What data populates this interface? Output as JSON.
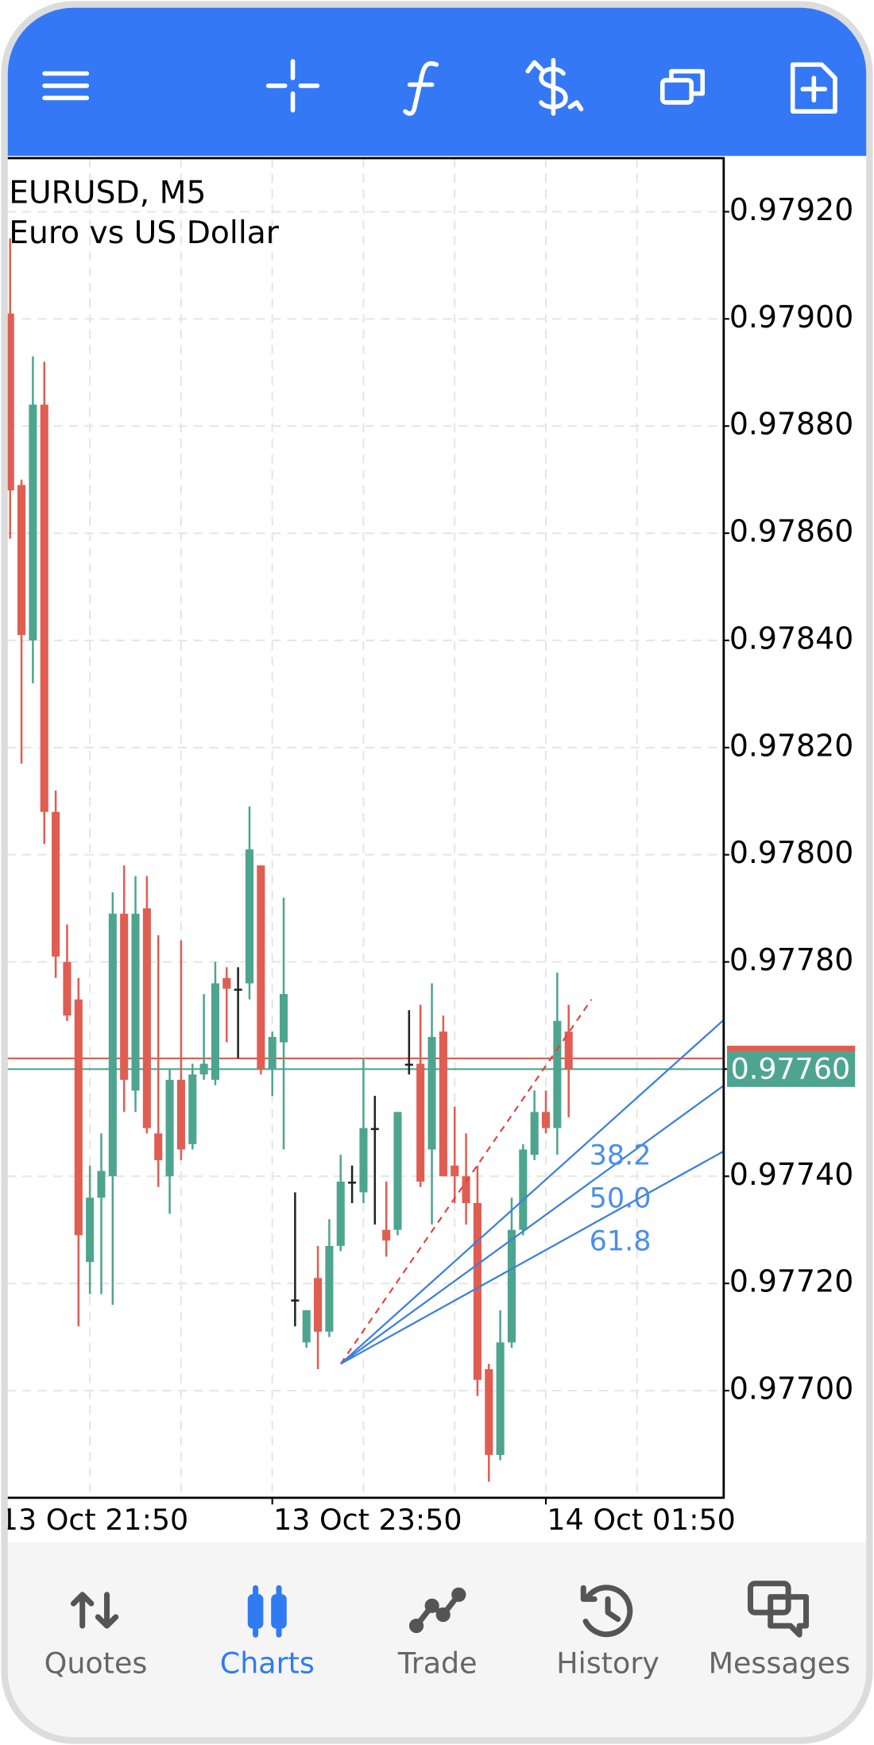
{
  "chart_data": {
    "type": "candlestick",
    "title": "EURUSD, M5",
    "subtitle": "Euro vs US Dollar",
    "open": [
      0.97901,
      0.97869,
      0.9784,
      0.97884,
      0.97808,
      0.9778,
      0.97773,
      0.97724,
      0.97736,
      0.9774,
      0.97789,
      0.97756,
      0.9779,
      0.97748,
      0.9774,
      0.97758,
      0.97746,
      0.97759,
      0.97758,
      0.97777,
      0.97775,
      0.97776,
      0.97798,
      0.9776,
      0.97765,
      0.97717,
      0.97709,
      0.97721,
      0.97711,
      0.97727,
      0.97739,
      0.97737,
      0.97749,
      0.9773,
      0.9773,
      0.97761,
      0.97761,
      0.97745,
      0.97767,
      0.97742,
      0.9774,
      0.97735,
      0.97704,
      0.97688,
      0.97709,
      0.9773,
      0.97744,
      0.97752,
      0.97749,
      0.97767
    ],
    "high": [
      0.97915,
      0.9787,
      0.97893,
      0.97892,
      0.97812,
      0.97787,
      0.97777,
      0.97742,
      0.97748,
      0.97793,
      0.97798,
      0.97796,
      0.97796,
      0.97785,
      0.9776,
      0.97784,
      0.97761,
      0.97774,
      0.9778,
      0.97779,
      0.97779,
      0.97809,
      0.97798,
      0.97767,
      0.97792,
      0.97737,
      0.97715,
      0.97727,
      0.97732,
      0.97744,
      0.97742,
      0.97762,
      0.97755,
      0.97739,
      0.97752,
      0.97771,
      0.97772,
      0.97776,
      0.9777,
      0.97753,
      0.97748,
      0.97742,
      0.97705,
      0.97715,
      0.97736,
      0.97746,
      0.97756,
      0.97756,
      0.97778,
      0.97772
    ],
    "low": [
      0.97859,
      0.97817,
      0.97832,
      0.97802,
      0.97777,
      0.97769,
      0.97712,
      0.97718,
      0.97718,
      0.97716,
      0.97752,
      0.97752,
      0.97748,
      0.97738,
      0.97733,
      0.97743,
      0.97745,
      0.97758,
      0.97757,
      0.97765,
      0.97762,
      0.97773,
      0.97759,
      0.97755,
      0.97745,
      0.97712,
      0.97708,
      0.97704,
      0.9771,
      0.97726,
      0.97735,
      0.97735,
      0.97731,
      0.97725,
      0.97729,
      0.97759,
      0.97738,
      0.97731,
      0.9774,
      0.97735,
      0.97731,
      0.97699,
      0.97683,
      0.97687,
      0.97708,
      0.97729,
      0.97743,
      0.97748,
      0.97744,
      0.97751
    ],
    "close": [
      0.97868,
      0.97841,
      0.97884,
      0.97808,
      0.97781,
      0.9777,
      0.97729,
      0.97736,
      0.97741,
      0.97789,
      0.97758,
      0.97789,
      0.97749,
      0.97743,
      0.97758,
      0.97745,
      0.97759,
      0.97761,
      0.97776,
      0.97775,
      0.97775,
      0.97801,
      0.9776,
      0.97766,
      0.97774,
      0.97717,
      0.97715,
      0.97711,
      0.97727,
      0.97739,
      0.97739,
      0.97749,
      0.97749,
      0.97728,
      0.97752,
      0.97761,
      0.97739,
      0.97766,
      0.9774,
      0.9774,
      0.97735,
      0.97702,
      0.97688,
      0.97709,
      0.9773,
      0.97745,
      0.97752,
      0.97749,
      0.97769,
      0.9776
    ],
    "up_color": "#4ea58f",
    "down_color": "#e05d52",
    "doji_color": "#222222",
    "ylim": [
      0.9768,
      0.9793
    ],
    "yticks": [
      {
        "value": 0.977,
        "label": "0.97700"
      },
      {
        "value": 0.9772,
        "label": "0.97720"
      },
      {
        "value": 0.9774,
        "label": "0.97740"
      },
      {
        "value": 0.9776,
        "label": "0.97760"
      },
      {
        "value": 0.9778,
        "label": "0.97780"
      },
      {
        "value": 0.978,
        "label": "0.97800"
      },
      {
        "value": 0.9782,
        "label": "0.97820"
      },
      {
        "value": 0.9784,
        "label": "0.97840"
      },
      {
        "value": 0.9786,
        "label": "0.97860"
      },
      {
        "value": 0.9788,
        "label": "0.97880"
      },
      {
        "value": 0.979,
        "label": "0.97900"
      },
      {
        "value": 0.9792,
        "label": "0.97920"
      }
    ],
    "xlim": [
      -0.3,
      62.6
    ],
    "xticks": [
      {
        "value": -1,
        "label": "13 Oct 21:50"
      },
      {
        "value": 23,
        "label": "13 Oct 23:50"
      },
      {
        "value": 47,
        "label": "14 Oct 01:50"
      }
    ],
    "xgrid": [
      7,
      15,
      31,
      39,
      55
    ],
    "grid": true,
    "bid": {
      "value": 0.9776,
      "label": "0.97760"
    },
    "bid_color": "#4ea58f",
    "ask": 0.97762,
    "ask_color": "#e05d52",
    "fibo_fan": {
      "start": [
        29,
        0.97705
      ],
      "end": [
        51,
        0.97773
      ],
      "levels": [
        38.2,
        {
          "value": 50,
          "label": "50.0"
        },
        61.8
      ],
      "color": "#3b7fe0",
      "trend_color": "#e0403a"
    }
  },
  "nav": {
    "items": [
      "Quotes",
      "Charts",
      "Trade",
      "History",
      "Messages"
    ],
    "active": 1,
    "color": "#666666",
    "active_color": "#2f7bf2"
  }
}
